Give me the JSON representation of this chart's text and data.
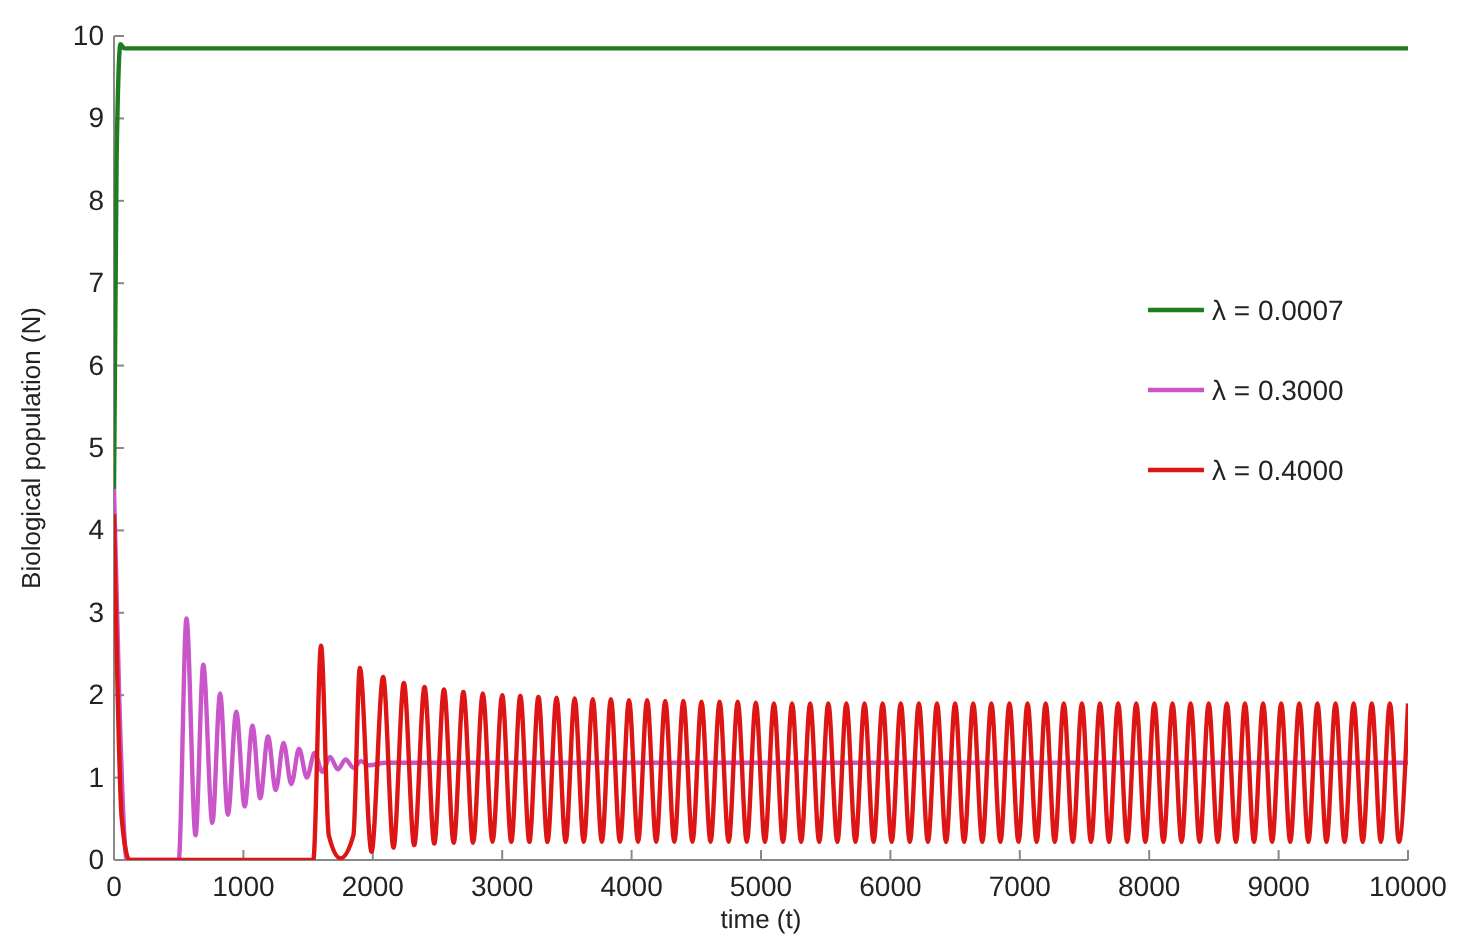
{
  "chart_data": {
    "type": "line",
    "xlabel": "time (t)",
    "ylabel": "Biological population (N)",
    "xlim": [
      0,
      10000
    ],
    "ylim": [
      0,
      10
    ],
    "xticks": [
      0,
      1000,
      2000,
      3000,
      4000,
      5000,
      6000,
      7000,
      8000,
      9000,
      10000
    ],
    "yticks": [
      0,
      1,
      2,
      3,
      4,
      5,
      6,
      7,
      8,
      9,
      10
    ],
    "legend": "right",
    "grid": false,
    "line_style": "solid",
    "marker": "none",
    "series": [
      {
        "name": "λ = 0.0007",
        "color": "#1e7d1e",
        "x": [
          0,
          20,
          50,
          80,
          150,
          10000
        ],
        "values": [
          4.5,
          8.5,
          9.9,
          9.85,
          9.85,
          9.85
        ]
      },
      {
        "name": "λ = 0.3000",
        "color": "#c955c9",
        "x": [
          0,
          40,
          100,
          500,
          560,
          630,
          690,
          760,
          820,
          880,
          945,
          1010,
          1070,
          1130,
          1190,
          1250,
          1310,
          1370,
          1430,
          1490,
          1550,
          1610,
          1670,
          1730,
          1790,
          1850,
          1910,
          1970,
          2100,
          10000
        ],
        "values": [
          4.5,
          2.0,
          0,
          0,
          2.93,
          0.3,
          2.37,
          0.45,
          2.02,
          0.55,
          1.8,
          0.65,
          1.63,
          0.75,
          1.5,
          0.85,
          1.42,
          0.92,
          1.35,
          1.0,
          1.3,
          1.07,
          1.25,
          1.1,
          1.22,
          1.12,
          1.2,
          1.15,
          1.18,
          1.18
        ]
      },
      {
        "name": "λ = 0.4000",
        "color": "#dd1515",
        "x": [
          0,
          60,
          120,
          1540,
          1600,
          1660,
          1750,
          1850,
          1900,
          1990,
          2080,
          2160,
          2240,
          2320,
          2400,
          2475,
          2550,
          2625,
          2700,
          2775,
          2850,
          2925,
          3000,
          3070,
          3140,
          3210,
          3280,
          3350,
          3420,
          3490,
          3560,
          3630,
          3700,
          3770,
          3840,
          3910,
          3980,
          4050,
          4120,
          4190,
          4260,
          4330,
          4400,
          4470,
          4540,
          4610,
          4680,
          4750,
          4820,
          4890,
          4960,
          5030,
          5100,
          5170,
          5240,
          5310,
          5380,
          5450,
          5520,
          5590,
          5660,
          5730,
          5800,
          5870,
          5940,
          6010,
          6080,
          6150,
          6220,
          6290,
          6360,
          6430,
          6500,
          6570,
          6640,
          6710,
          6780,
          6850,
          6920,
          6990,
          7060,
          7130,
          7200,
          7270,
          7340,
          7410,
          7480,
          7550,
          7620,
          7690,
          7760,
          7830,
          7900,
          7970,
          8040,
          8110,
          8180,
          8250,
          8320,
          8390,
          8460,
          8530,
          8600,
          8670,
          8740,
          8810,
          8880,
          8950,
          9020,
          9090,
          9160,
          9230,
          9300,
          9370,
          9440,
          9510,
          9580,
          9650,
          9720,
          9790,
          9860,
          9930,
          10000
        ],
        "values": [
          4.2,
          0.5,
          0,
          0,
          2.6,
          0.3,
          0.02,
          0.3,
          2.33,
          0.1,
          2.22,
          0.15,
          2.15,
          0.18,
          2.1,
          0.2,
          2.07,
          0.21,
          2.04,
          0.21,
          2.02,
          0.22,
          2.0,
          0.22,
          1.99,
          0.22,
          1.98,
          0.22,
          1.97,
          0.22,
          1.96,
          0.22,
          1.95,
          0.22,
          1.95,
          0.22,
          1.94,
          0.22,
          1.94,
          0.22,
          1.93,
          0.22,
          1.93,
          0.22,
          1.92,
          0.22,
          1.92,
          0.22,
          1.92,
          0.22,
          1.91,
          0.22,
          1.9,
          0.22,
          1.9,
          0.22,
          1.9,
          0.22,
          1.9,
          0.22,
          1.9,
          0.22,
          1.9,
          0.22,
          1.9,
          0.22,
          1.9,
          0.22,
          1.9,
          0.22,
          1.9,
          0.22,
          1.9,
          0.22,
          1.9,
          0.22,
          1.9,
          0.22,
          1.9,
          0.22,
          1.9,
          0.22,
          1.9,
          0.22,
          1.9,
          0.22,
          1.9,
          0.22,
          1.9,
          0.22,
          1.9,
          0.22,
          1.9,
          0.22,
          1.9,
          0.22,
          1.9,
          0.22,
          1.9,
          0.22,
          1.9,
          0.22,
          1.9,
          0.22,
          1.9,
          0.22,
          1.9,
          0.22,
          1.9,
          0.22,
          1.9,
          0.22,
          1.9,
          0.22,
          1.9,
          0.22,
          1.9,
          0.22,
          1.9,
          0.22,
          1.9,
          0.22,
          1.9
        ]
      }
    ]
  }
}
